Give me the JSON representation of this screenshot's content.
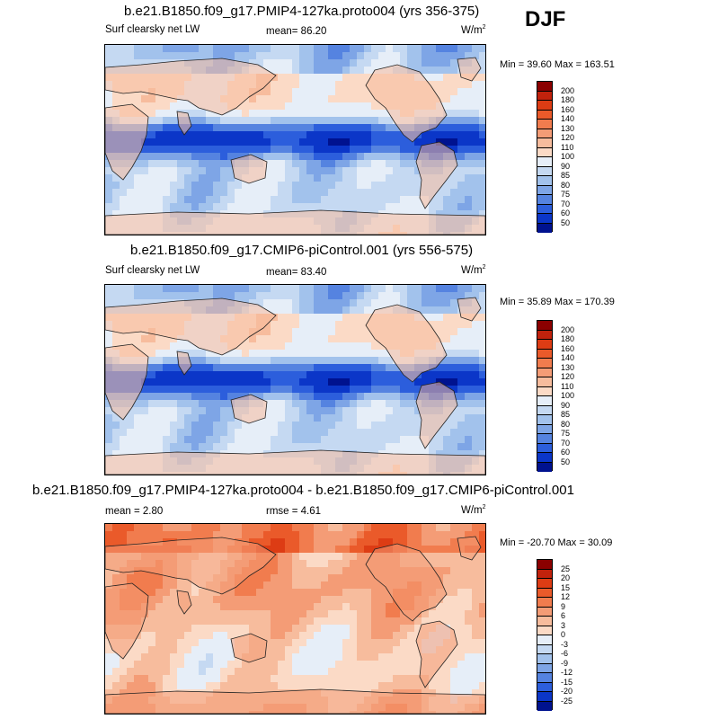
{
  "season": "DJF",
  "panels": [
    {
      "title": "b.e21.B1850.f09_g17.PMIP4-127ka.proto004 (yrs 356-375)",
      "left_label": "Surf clearsky net LW",
      "mean_label": "mean=  86.20",
      "unit": "W/m",
      "unit_exp": "2",
      "minmax": "Min =  39.60 Max = 163.51",
      "scale": "abs",
      "levels": [
        "200",
        "180",
        "160",
        "140",
        "130",
        "120",
        "110",
        "100",
        "90",
        "85",
        "80",
        "75",
        "70",
        "60",
        "50"
      ],
      "colors": [
        "#8b0000",
        "#c1220c",
        "#dd3c14",
        "#ea5a2a",
        "#f17c4e",
        "#f49c76",
        "#f7bc9d",
        "#fbdac6",
        "#e6eef8",
        "#c5d9f2",
        "#a2c2ec",
        "#7ea5e6",
        "#5583e0",
        "#2c5edc",
        "#0b36c8",
        "#00128f"
      ],
      "mean": 86.2,
      "min": 39.6,
      "max": 163.51
    },
    {
      "title": "b.e21.B1850.f09_g17.CMIP6-piControl.001 (yrs 556-575)",
      "left_label": "Surf clearsky net LW",
      "mean_label": "mean=  83.40",
      "unit": "W/m",
      "unit_exp": "2",
      "minmax": "Min =  35.89 Max = 170.39",
      "scale": "abs",
      "levels": [
        "200",
        "180",
        "160",
        "140",
        "130",
        "120",
        "110",
        "100",
        "90",
        "85",
        "80",
        "75",
        "70",
        "60",
        "50"
      ],
      "colors": [
        "#8b0000",
        "#c1220c",
        "#dd3c14",
        "#ea5a2a",
        "#f17c4e",
        "#f49c76",
        "#f7bc9d",
        "#fbdac6",
        "#e6eef8",
        "#c5d9f2",
        "#a2c2ec",
        "#7ea5e6",
        "#5583e0",
        "#2c5edc",
        "#0b36c8",
        "#00128f"
      ],
      "mean": 83.4,
      "min": 35.89,
      "max": 170.39
    },
    {
      "title": "b.e21.B1850.f09_g17.PMIP4-127ka.proto004 - b.e21.B1850.f09_g17.CMIP6-piControl.001",
      "left_label": "mean =   2.80",
      "mean_label": "rmse =   4.61",
      "unit": "W/m",
      "unit_exp": "2",
      "minmax": "Min = -20.70 Max =  30.09",
      "scale": "diff",
      "levels": [
        "25",
        "20",
        "15",
        "12",
        "9",
        "6",
        "3",
        "0",
        "-3",
        "-6",
        "-9",
        "-12",
        "-15",
        "-20",
        "-25"
      ],
      "colors": [
        "#8b0000",
        "#c1220c",
        "#dd3c14",
        "#ea5a2a",
        "#f17c4e",
        "#f49c76",
        "#f7bc9d",
        "#fbdac6",
        "#e6eef8",
        "#c5d9f2",
        "#a2c2ec",
        "#7ea5e6",
        "#5583e0",
        "#2c5edc",
        "#0b36c8",
        "#00128f"
      ],
      "mean": 2.8,
      "rmse": 4.61,
      "min": -20.7,
      "max": 30.09
    }
  ]
}
